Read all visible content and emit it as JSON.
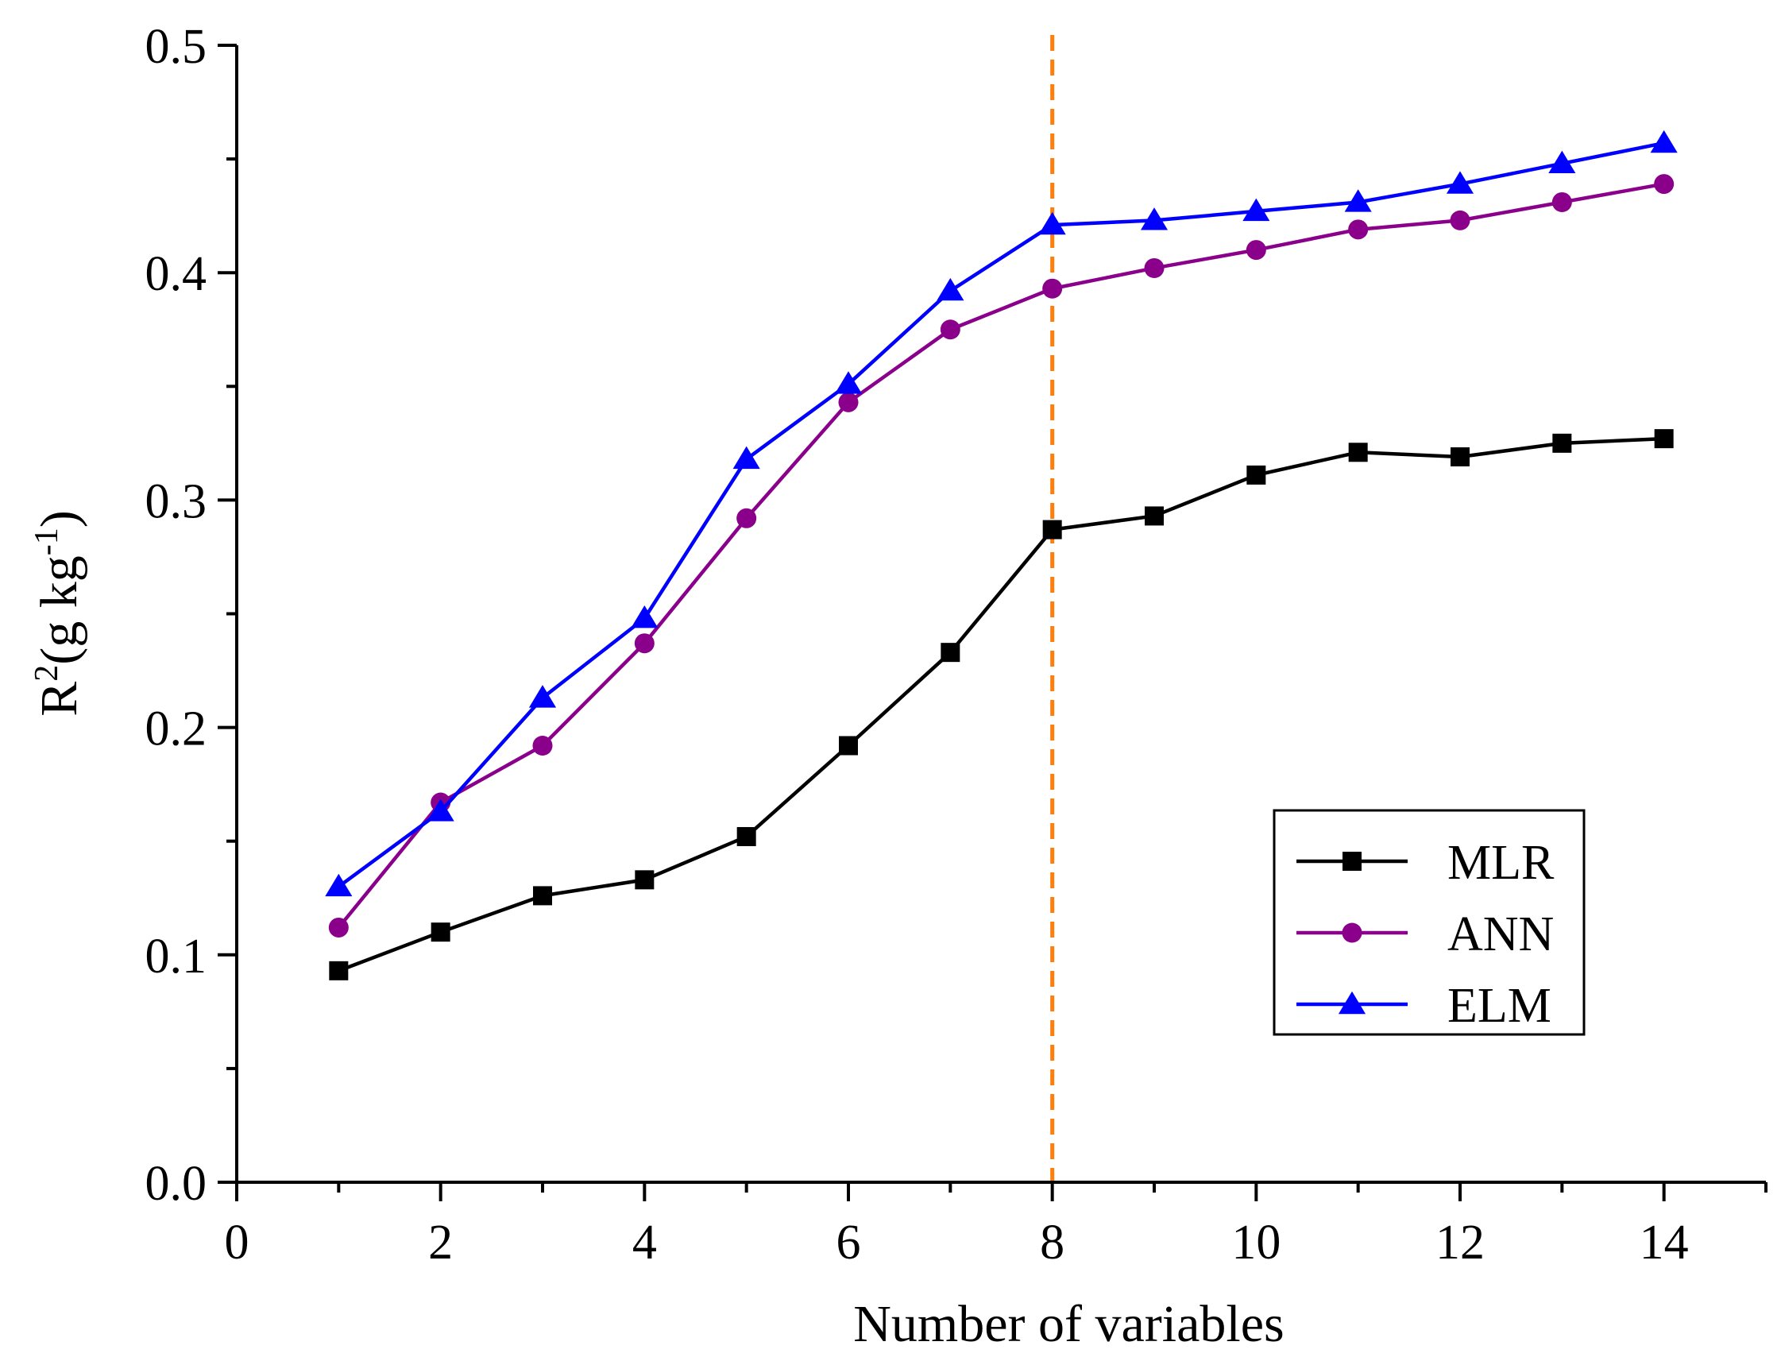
{
  "chart_data": {
    "type": "line",
    "title": "",
    "xlabel": "Number of variables",
    "ylabel": {
      "base": "R",
      "sup": "2",
      "unit_open": "(g kg",
      "unit_sup": "-1",
      "unit_close": ")"
    },
    "xlim": [
      0,
      15
    ],
    "ylim": [
      0.0,
      0.5
    ],
    "x_ticks": [
      0,
      2,
      4,
      6,
      8,
      10,
      12,
      14
    ],
    "x_tick_labels": [
      "0",
      "2",
      "4",
      "6",
      "8",
      "10",
      "12",
      "14"
    ],
    "y_ticks": [
      0.0,
      0.1,
      0.2,
      0.3,
      0.4,
      0.5
    ],
    "y_tick_labels": [
      "0.0",
      "0.1",
      "0.2",
      "0.3",
      "0.4",
      "0.5"
    ],
    "grid": false,
    "legend_position": "bottom-right",
    "x": [
      1,
      2,
      3,
      4,
      5,
      6,
      7,
      8,
      9,
      10,
      11,
      12,
      13,
      14
    ],
    "series": [
      {
        "name": "MLR",
        "color": "#000000",
        "marker": "square",
        "values": [
          0.093,
          0.11,
          0.126,
          0.133,
          0.152,
          0.192,
          0.233,
          0.287,
          0.293,
          0.311,
          0.321,
          0.319,
          0.325,
          0.327
        ]
      },
      {
        "name": "ANN",
        "color": "#8b008b",
        "marker": "circle",
        "values": [
          0.112,
          0.167,
          0.192,
          0.237,
          0.292,
          0.343,
          0.375,
          0.393,
          0.402,
          0.41,
          0.419,
          0.423,
          0.431,
          0.439
        ]
      },
      {
        "name": "ELM",
        "color": "#0000ff",
        "marker": "triangle",
        "values": [
          0.13,
          0.163,
          0.213,
          0.248,
          0.318,
          0.351,
          0.392,
          0.421,
          0.423,
          0.427,
          0.431,
          0.439,
          0.448,
          0.457
        ]
      }
    ],
    "reference_line": {
      "orientation": "vertical",
      "x": 8,
      "color": "#ff7f0e",
      "style": "dashed"
    }
  }
}
